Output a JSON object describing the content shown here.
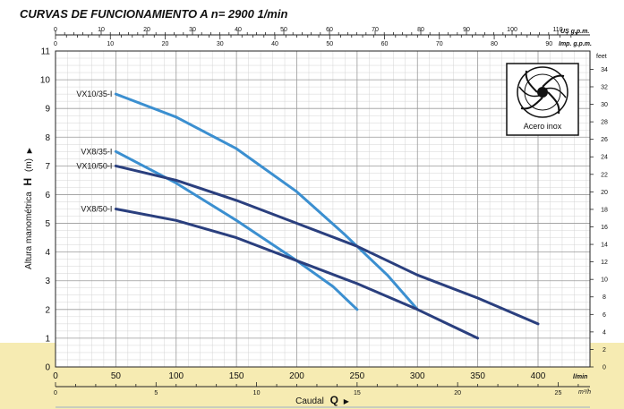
{
  "chart_data": {
    "type": "line",
    "title": "CURVAS DE FUNCIONAMIENTO A  n= 2900  1/min",
    "ylabel": "Altura manométrica",
    "ylabel_symbol": "H",
    "ylabel_unit": "(m)",
    "xlabel": "Caudal",
    "xlabel_symbol": "Q",
    "xlim": [
      0,
      410
    ],
    "ylim": [
      0,
      11
    ],
    "x_unit_main": "l/min",
    "x_ticks_main": [
      0,
      50,
      100,
      150,
      200,
      250,
      300,
      350,
      400
    ],
    "y_ticks_main": [
      0,
      1,
      2,
      3,
      4,
      5,
      6,
      7,
      8,
      9,
      10,
      11
    ],
    "x_axis_m3h": {
      "unit": "m³/h",
      "ticks": [
        0,
        5,
        10,
        15,
        20,
        25
      ]
    },
    "top_axis_usgpm": {
      "unit": "US g.p.m.",
      "ticks": [
        0,
        10,
        20,
        30,
        40,
        50,
        60,
        70,
        80,
        90,
        100,
        110
      ]
    },
    "top_axis_impgpm": {
      "unit": "Imp. g.p.m.",
      "ticks": [
        0,
        10,
        20,
        30,
        40,
        50,
        60,
        70,
        80,
        90
      ]
    },
    "right_axis_feet": {
      "unit": "feet",
      "ticks": [
        0,
        2,
        4,
        6,
        8,
        10,
        12,
        14,
        16,
        18,
        20,
        22,
        24,
        26,
        28,
        30,
        32,
        34
      ]
    },
    "grid": true,
    "legend_box": "Acero inox",
    "series": [
      {
        "name": "VX10/35-I",
        "color": "#3b8fd0",
        "x": [
          50,
          100,
          150,
          200,
          240,
          275,
          300
        ],
        "y": [
          9.5,
          8.7,
          7.6,
          6.1,
          4.6,
          3.2,
          2.0
        ]
      },
      {
        "name": "VX8/35-I",
        "color": "#3b8fd0",
        "x": [
          50,
          100,
          150,
          200,
          230,
          250
        ],
        "y": [
          7.5,
          6.4,
          5.1,
          3.7,
          2.8,
          2.0
        ]
      },
      {
        "name": "VX10/50-I",
        "color": "#2a3f7e",
        "x": [
          50,
          100,
          150,
          200,
          250,
          300,
          350,
          400
        ],
        "y": [
          7.0,
          6.5,
          5.8,
          5.0,
          4.2,
          3.2,
          2.4,
          1.5
        ]
      },
      {
        "name": "VX8/50-I",
        "color": "#2a3f7e",
        "x": [
          50,
          100,
          150,
          200,
          250,
          300,
          350
        ],
        "y": [
          5.5,
          5.1,
          4.5,
          3.7,
          2.9,
          2.0,
          1.0
        ]
      }
    ]
  }
}
